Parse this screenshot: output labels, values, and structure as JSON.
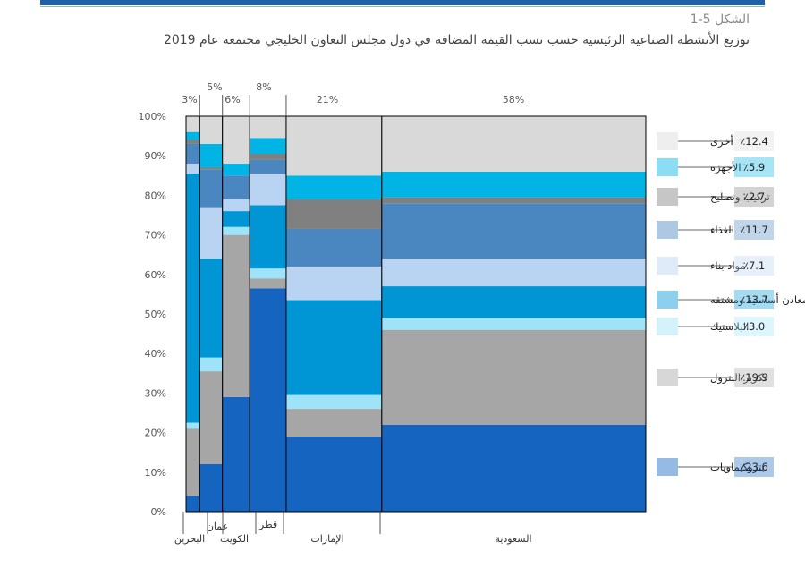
{
  "figure": {
    "label": "الشكل 5-1",
    "title": "توزيع الأنشطة الصناعية الرئيسية حسب نسب القيمة المضافة في دول مجلس التعاون الخليجي مجتمعة عام 2019"
  },
  "chart_data": {
    "type": "mekko",
    "ylim": [
      0,
      100
    ],
    "y_ticks": [
      "0%",
      "10%",
      "20%",
      "30%",
      "40%",
      "50%",
      "60%",
      "70%",
      "80%",
      "90%",
      "100%"
    ],
    "segments_bottom_to_top": [
      {
        "name": "بتروكيماويات",
        "color": "#1565c0"
      },
      {
        "name": "تكرير البترول",
        "color": "#a6a6a6"
      },
      {
        "name": "البلاستيك",
        "color": "#9ee3f7"
      },
      {
        "name": "معادن أساسية ومشتقه",
        "color": "#0096d6"
      },
      {
        "name": "مواد بناء",
        "color": "#b9d3f2"
      },
      {
        "name": "الغذاء",
        "color": "#4a86c0"
      },
      {
        "name": "تركيب وتصليح",
        "color": "#808080"
      },
      {
        "name": "الأجهزه",
        "color": "#00b4e6"
      },
      {
        "name": "أخرى",
        "color": "#d9d9d9"
      }
    ],
    "countries": [
      {
        "name": "البحرين",
        "share_label": "3%",
        "width": 3,
        "values": [
          4,
          17,
          1.5,
          63,
          2.5,
          5,
          1,
          2,
          4
        ]
      },
      {
        "name": "عمان",
        "share_label": "5%",
        "width": 5,
        "values": [
          12,
          23.5,
          3.5,
          25,
          13,
          9.5,
          0.5,
          6,
          7
        ]
      },
      {
        "name": "الكويت",
        "share_label": "6%",
        "width": 6,
        "values": [
          29,
          41,
          2,
          4,
          3,
          6,
          0,
          3,
          12
        ]
      },
      {
        "name": "قطر",
        "share_label": "8%",
        "width": 8,
        "values": [
          56.5,
          2.5,
          2.5,
          16,
          8,
          3.5,
          1.5,
          4,
          5.5
        ]
      },
      {
        "name": "الإمارات",
        "share_label": "21%",
        "width": 21,
        "values": [
          19,
          7,
          3.5,
          24,
          8.5,
          9.5,
          7.5,
          6,
          15
        ]
      },
      {
        "name": "السعودية",
        "share_label": "58%",
        "width": 58,
        "values": [
          22,
          24,
          3,
          8,
          7,
          14,
          1.5,
          6.5,
          14
        ]
      }
    ],
    "legend_values": [
      {
        "name": "أخرى",
        "value": "12.4",
        "unit": "٪"
      },
      {
        "name": "الأجهزه",
        "value": "5.9",
        "unit": "٪"
      },
      {
        "name": "تركيب وتصليح",
        "value": "2.7",
        "unit": "٪"
      },
      {
        "name": "الغذاء",
        "value": "11.7",
        "unit": "٪"
      },
      {
        "name": "مواد بناء",
        "value": "7.1",
        "unit": "٪"
      },
      {
        "name": "معادن أساسية ومشتقه",
        "value": "13.7",
        "unit": "٪"
      },
      {
        "name": "البلاستيك",
        "value": "3.0",
        "unit": "٪"
      },
      {
        "name": "تكرير البترول",
        "value": "19.9",
        "unit": "٪"
      },
      {
        "name": "بتروكيماويات",
        "value": "23.6",
        "unit": "٪"
      }
    ]
  }
}
